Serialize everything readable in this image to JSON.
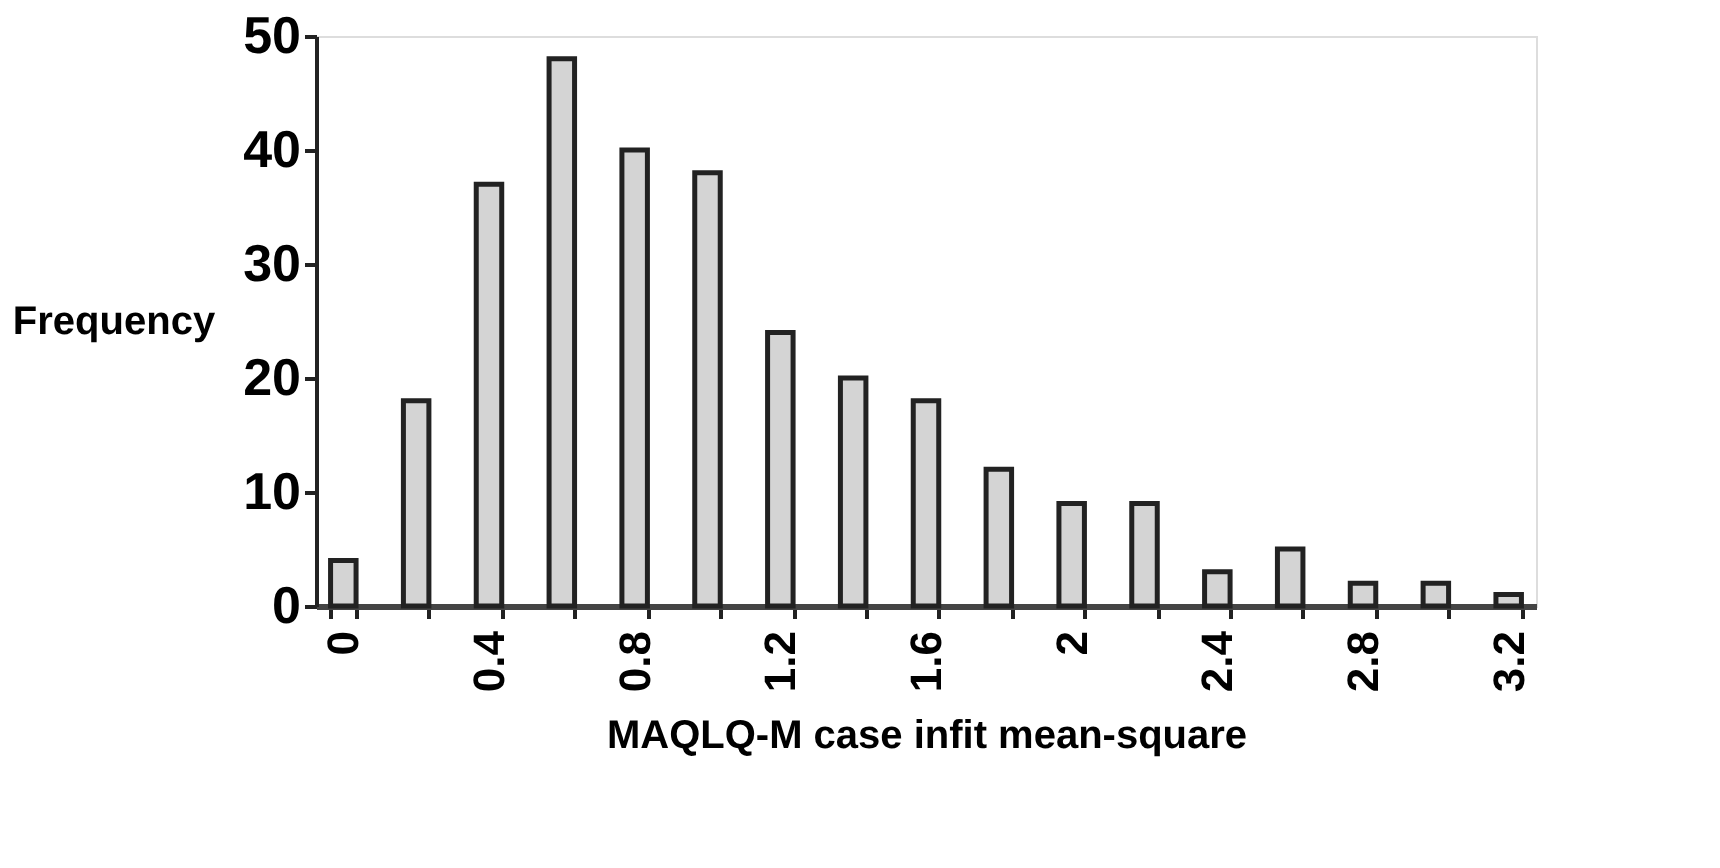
{
  "chart_data": {
    "type": "bar",
    "xlabel": "MAQLQ-M case infit mean-square",
    "ylabel": "Frequency",
    "categories": [
      "0",
      null,
      "0.4",
      null,
      "0.8",
      null,
      "1.2",
      null,
      "1.6",
      null,
      "2",
      null,
      "2.4",
      null,
      "2.8",
      null,
      "3.2"
    ],
    "values": [
      4,
      18,
      37,
      48,
      40,
      38,
      24,
      20,
      18,
      12,
      9,
      9,
      3,
      5,
      2,
      2,
      1
    ],
    "color": "#d4d4d4",
    "ylim": [
      0,
      50
    ],
    "yticks": [
      0,
      10,
      20,
      30,
      40,
      50
    ],
    "grid": false
  }
}
